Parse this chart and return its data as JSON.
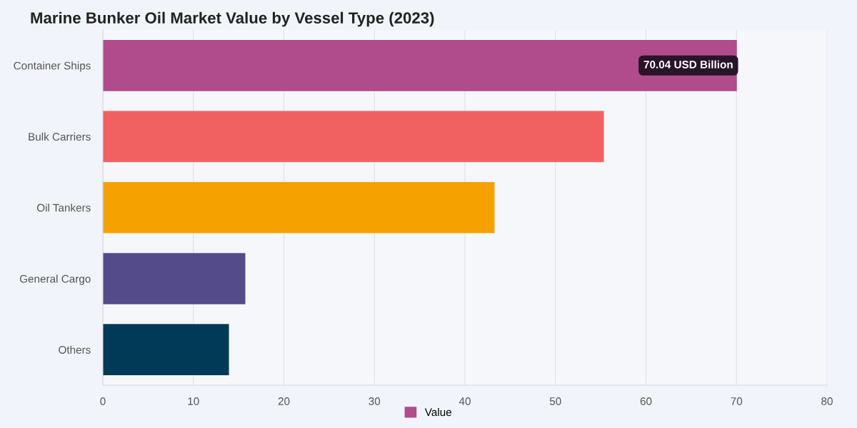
{
  "chart_data": {
    "type": "bar",
    "orientation": "horizontal",
    "title": "Marine Bunker Oil Market Value by Vessel Type (2023)",
    "categories": [
      "Container Ships",
      "Bulk Carriers",
      "Oil Tankers",
      "General Cargo",
      "Others"
    ],
    "series": [
      {
        "name": "Value",
        "color": "#b04b8c",
        "colors": [
          "#b04b8c",
          "#f26161",
          "#f5a100",
          "#544c8a",
          "#003a57"
        ],
        "values": [
          70.04,
          55.35,
          43.27,
          15.74,
          13.93
        ]
      }
    ],
    "xlim": [
      0,
      80
    ],
    "xticks": [
      0,
      10,
      20,
      30,
      40,
      50,
      60,
      70,
      80
    ],
    "grid": "x",
    "legend": "bottom",
    "annotations": [
      {
        "text": "70.04 USD Billion",
        "x": 70.04,
        "y": "Container Ships"
      }
    ]
  }
}
